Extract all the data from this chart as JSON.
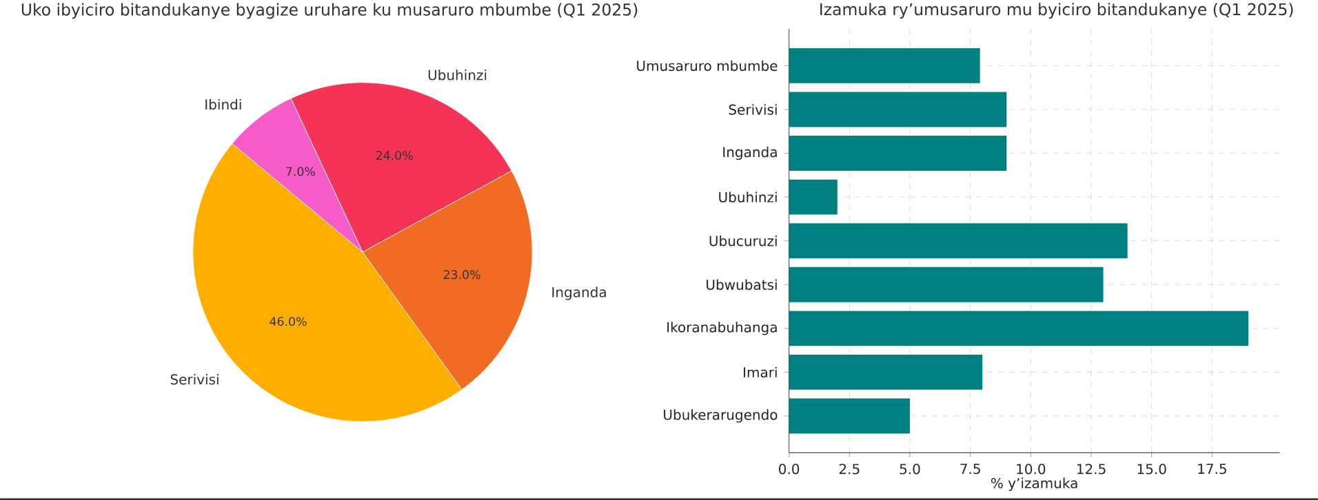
{
  "chart_data": [
    {
      "type": "pie",
      "title": "Uko ibyiciro bitandukanye byagize uruhare ku musaruro mbumbe (Q1 2025)",
      "categories": [
        "Ubuhinzi",
        "Inganda",
        "Serivisi",
        "Ibindi"
      ],
      "values": [
        24,
        23,
        46,
        7
      ],
      "colors": [
        "#f43356",
        "#f26b22",
        "#ffae00",
        "#f75bc8"
      ],
      "value_labels": [
        "24.0%",
        "23.0%",
        "46.0%",
        "7.0%"
      ]
    },
    {
      "type": "bar",
      "orientation": "horizontal",
      "title": "Izamuka ry’umusaruro mu byiciro bitandukanye (Q1 2025)",
      "xlabel": "% y’izamuka",
      "categories": [
        "Umusaruro mbumbe",
        "Serivisi",
        "Inganda",
        "Ubuhinzi",
        "Ubucuruzi",
        "Ubwubatsi",
        "Ikoranabuhanga",
        "Imari",
        "Ubukerarugendo"
      ],
      "values": [
        7.9,
        9,
        9,
        2,
        14,
        13,
        19,
        8,
        5
      ],
      "color": "#008080",
      "xlim": [
        0,
        20.3
      ],
      "xticks": [
        {
          "value": 0,
          "label": "0.0"
        },
        {
          "value": 2.5,
          "label": "2.5"
        },
        {
          "value": 5,
          "label": "5.0"
        },
        {
          "value": 7.5,
          "label": "7.5"
        },
        {
          "value": 10,
          "label": "10.0"
        },
        {
          "value": 12.5,
          "label": "12.5"
        },
        {
          "value": 15,
          "label": "15.0"
        },
        {
          "value": 17.5,
          "label": "17.5"
        }
      ],
      "grid": true
    }
  ]
}
